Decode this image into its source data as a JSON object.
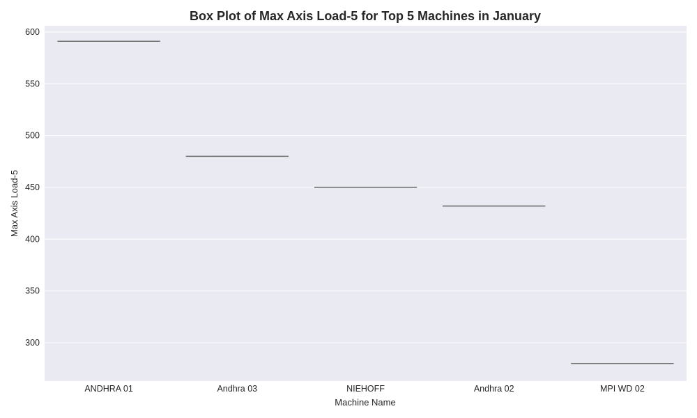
{
  "chart_data": {
    "type": "box",
    "title": "Box Plot of Max Axis Load-5 for Top 5 Machines in January",
    "xlabel": "Machine Name",
    "ylabel": "Max Axis Load-5",
    "categories": [
      "ANDHRA 01",
      "Andhra 03",
      "NIEHOFF",
      "Andhra 02",
      "MPI WD 02"
    ],
    "values": [
      591,
      480,
      450,
      432,
      280
    ],
    "ylim": [
      263,
      606
    ],
    "yticks": [
      300,
      350,
      400,
      450,
      500,
      550,
      600
    ],
    "grid": true,
    "colors": {
      "plot_background": "#eaeaf2",
      "grid": "#ffffff",
      "box_line": "#6e6e6e",
      "text": "#262626"
    }
  }
}
